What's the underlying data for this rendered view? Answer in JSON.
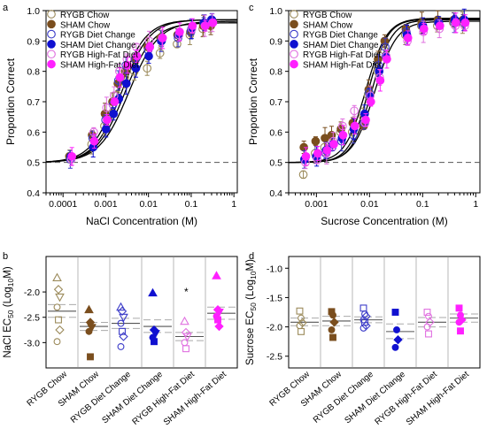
{
  "figure": {
    "panel_labels": [
      "a",
      "c",
      "b",
      "d"
    ],
    "colors": {
      "rygb_chow": "#9B8A5A",
      "sham_chow": "#7A4E1E",
      "rygb_diet_change": "#3B3BC8",
      "sham_diet_change": "#1010D0",
      "rygb_hfd": "#E070E0",
      "sham_hfd": "#FF20FF",
      "fit_line": "#000000",
      "dashed_line": "#555555"
    }
  },
  "chart_data": [
    {
      "panel": "a",
      "type": "scatter",
      "xscale": "log",
      "xlabel": "NaCl Concentration (M)",
      "ylabel": "Proportion Correct",
      "xlim": [
        4e-05,
        1.2
      ],
      "ylim": [
        0.4,
        1.0
      ],
      "x_ticks": [
        "0.0001",
        "0.001",
        "0.01",
        "0.1",
        "1"
      ],
      "y_ticks": [
        "0.4",
        "0.5",
        "0.6",
        "0.7",
        "0.8",
        "0.9",
        "1.0"
      ],
      "chance_level": 0.5,
      "legend_position": "top-left",
      "x": [
        0.00015,
        0.0005,
        0.001,
        0.0015,
        0.002,
        0.003,
        0.005,
        0.01,
        0.02,
        0.05,
        0.1,
        0.2,
        0.3
      ],
      "series": [
        {
          "name": "RYGB Chow",
          "marker": "circle",
          "filled": false,
          "values": [
            0.52,
            0.56,
            0.62,
            0.66,
            0.72,
            0.78,
            0.8,
            0.81,
            0.86,
            0.89,
            0.92,
            0.94,
            0.95
          ]
        },
        {
          "name": "SHAM Chow",
          "marker": "circle",
          "filled": true,
          "values": [
            0.52,
            0.59,
            0.66,
            0.7,
            0.76,
            0.8,
            0.84,
            0.88,
            0.91,
            0.92,
            0.93,
            0.95,
            0.95
          ]
        },
        {
          "name": "RYGB Diet Change",
          "marker": "circle",
          "filled": false,
          "values": [
            0.51,
            0.58,
            0.64,
            0.69,
            0.77,
            0.82,
            0.84,
            0.87,
            0.9,
            0.91,
            0.93,
            0.96,
            0.97
          ]
        },
        {
          "name": "SHAM Diet Change",
          "marker": "circle",
          "filled": true,
          "values": [
            0.52,
            0.55,
            0.61,
            0.66,
            0.71,
            0.76,
            0.81,
            0.85,
            0.9,
            0.92,
            0.94,
            0.96,
            0.97
          ]
        },
        {
          "name": "RYGB High-Fat Diet",
          "marker": "circle",
          "filled": false,
          "values": [
            0.51,
            0.6,
            0.68,
            0.72,
            0.8,
            0.84,
            0.88,
            0.9,
            0.91,
            0.92,
            0.94,
            0.95,
            0.96
          ]
        },
        {
          "name": "SHAM High-Fat Diet",
          "marker": "circle",
          "filled": true,
          "values": [
            0.52,
            0.57,
            0.64,
            0.7,
            0.78,
            0.82,
            0.85,
            0.88,
            0.91,
            0.93,
            0.95,
            0.95,
            0.96
          ]
        }
      ]
    },
    {
      "panel": "c",
      "type": "scatter",
      "xscale": "log",
      "xlabel": "Sucrose Concentration (M)",
      "ylabel": "Proportion Correct",
      "xlim": [
        0.0003,
        1.2
      ],
      "ylim": [
        0.4,
        1.0
      ],
      "x_ticks": [
        "0.001",
        "0.01",
        "0.1",
        "1"
      ],
      "y_ticks": [
        "0.4",
        "0.5",
        "0.6",
        "0.7",
        "0.8",
        "0.9",
        "1.0"
      ],
      "chance_level": 0.5,
      "legend_position": "top-left",
      "x": [
        0.0006,
        0.001,
        0.0015,
        0.002,
        0.003,
        0.005,
        0.008,
        0.01,
        0.015,
        0.02,
        0.05,
        0.1,
        0.2,
        0.4,
        0.6
      ],
      "series": [
        {
          "name": "RYGB Chow",
          "marker": "circle",
          "filled": false,
          "values": [
            0.46,
            0.53,
            0.55,
            0.57,
            0.6,
            0.6,
            0.65,
            0.72,
            0.8,
            0.87,
            0.92,
            0.95,
            0.95,
            0.96,
            0.96
          ]
        },
        {
          "name": "SHAM Chow",
          "marker": "circle",
          "filled": true,
          "values": [
            0.55,
            0.57,
            0.58,
            0.59,
            0.61,
            0.63,
            0.62,
            0.74,
            0.84,
            0.9,
            0.94,
            0.96,
            0.97,
            0.97,
            0.97
          ]
        },
        {
          "name": "RYGB Diet Change",
          "marker": "circle",
          "filled": false,
          "values": [
            0.51,
            0.52,
            0.53,
            0.55,
            0.57,
            0.59,
            0.63,
            0.73,
            0.82,
            0.88,
            0.93,
            0.95,
            0.96,
            0.96,
            0.96
          ]
        },
        {
          "name": "SHAM Diet Change",
          "marker": "circle",
          "filled": true,
          "values": [
            0.51,
            0.52,
            0.54,
            0.56,
            0.58,
            0.61,
            0.66,
            0.72,
            0.8,
            0.85,
            0.92,
            0.95,
            0.96,
            0.97,
            0.97
          ]
        },
        {
          "name": "RYGB High-Fat Diet",
          "marker": "circle",
          "filled": false,
          "values": [
            0.5,
            0.51,
            0.53,
            0.57,
            0.62,
            0.67,
            0.63,
            0.72,
            0.78,
            0.85,
            0.9,
            0.93,
            0.94,
            0.95,
            0.95
          ]
        },
        {
          "name": "SHAM High-Fat Diet",
          "marker": "circle",
          "filled": true,
          "values": [
            0.52,
            0.53,
            0.54,
            0.56,
            0.59,
            0.62,
            0.64,
            0.7,
            0.77,
            0.84,
            0.91,
            0.94,
            0.95,
            0.96,
            0.96
          ]
        }
      ]
    },
    {
      "panel": "b",
      "type": "scatter",
      "ylabel_parts": {
        "pre": "NaCl EC",
        "sub": "50",
        "mid": " (Log",
        "sub2": "10",
        "post": "M)"
      },
      "ylim": [
        -3.5,
        -1.3
      ],
      "y_ticks": [
        "-3.0",
        "-2.5",
        "-2.0"
      ],
      "categories": [
        "RYGB Chow",
        "SHAM Chow",
        "RYGB Diet Change",
        "SHAM Diet Change",
        "RYGB High-Fat Diet",
        "SHAM High-Fat Diet"
      ],
      "markers": [
        {
          "group": "RYGB Chow",
          "values": [
            -1.72,
            -1.95,
            -2.1,
            -2.3,
            -2.55,
            -2.75,
            -2.98
          ],
          "filled": false
        },
        {
          "group": "SHAM Chow",
          "values": [
            -2.35,
            -2.6,
            -2.7,
            -2.78,
            -3.28
          ],
          "filled": true
        },
        {
          "group": "RYGB Diet Change",
          "values": [
            -2.3,
            -2.38,
            -2.5,
            -2.62,
            -2.78,
            -2.88,
            -3.08
          ],
          "filled": false
        },
        {
          "group": "SHAM Diet Change",
          "values": [
            -2.02,
            -2.75,
            -2.82,
            -2.9,
            -2.98
          ],
          "filled": true
        },
        {
          "group": "RYGB High-Fat Diet",
          "values": [
            -2.58,
            -2.8,
            -2.88,
            -3.0,
            -3.12
          ],
          "filled": false
        },
        {
          "group": "SHAM High-Fat Diet",
          "values": [
            -1.68,
            -2.35,
            -2.4,
            -2.48,
            -2.55,
            -2.68
          ],
          "filled": true
        }
      ],
      "mean_lines": [
        {
          "group": "RYGB Chow",
          "mean": -2.38,
          "upper": -2.25,
          "lower": -2.5
        },
        {
          "group": "SHAM Chow",
          "mean": -2.68,
          "upper": -2.6,
          "lower": -2.76
        },
        {
          "group": "RYGB Diet Change",
          "mean": -2.62,
          "upper": -2.52,
          "lower": -2.72
        },
        {
          "group": "SHAM Diet Change",
          "mean": -2.68,
          "upper": -2.55,
          "lower": -2.8
        },
        {
          "group": "RYGB High-Fat Diet",
          "mean": -2.88,
          "upper": -2.8,
          "lower": -2.96
        },
        {
          "group": "SHAM High-Fat Diet",
          "mean": -2.42,
          "upper": -2.3,
          "lower": -2.54
        }
      ],
      "annotation": "*"
    },
    {
      "panel": "d",
      "type": "scatter",
      "ylabel_parts": {
        "pre": "Sucrose EC",
        "sub": "50",
        "mid": " (Log",
        "sub2": "10",
        "post": "M)"
      },
      "ylim": [
        -2.7,
        -0.8
      ],
      "y_ticks": [
        "-2.5",
        "-2.0",
        "-1.5",
        "-1.0"
      ],
      "categories": [
        "RYGB Chow",
        "SHAM Chow",
        "RYGB Diet Change",
        "SHAM Diet Change",
        "RYGB High-Fat Diet",
        "SHAM High-Fat Diet"
      ],
      "markers": [
        {
          "group": "RYGB Chow",
          "values": [
            -1.73,
            -1.85,
            -1.93,
            -1.98,
            -2.08
          ],
          "filled": false
        },
        {
          "group": "SHAM Chow",
          "values": [
            -1.74,
            -1.8,
            -1.92,
            -2.05,
            -2.18
          ],
          "filled": true
        },
        {
          "group": "RYGB Diet Change",
          "values": [
            -1.68,
            -1.78,
            -1.82,
            -1.88,
            -1.92,
            -1.98,
            -2.02
          ],
          "filled": false
        },
        {
          "group": "SHAM Diet Change",
          "values": [
            -1.75,
            -2.05,
            -2.22,
            -2.35
          ],
          "filled": true
        },
        {
          "group": "RYGB High-Fat Diet",
          "values": [
            -1.75,
            -1.82,
            -1.92,
            -2.0,
            -2.12
          ],
          "filled": false
        },
        {
          "group": "SHAM High-Fat Diet",
          "values": [
            -1.68,
            -1.8,
            -1.88,
            -1.92,
            -2.07
          ],
          "filled": true
        }
      ],
      "mean_lines": [
        {
          "group": "RYGB Chow",
          "mean": -1.92,
          "upper": -1.85,
          "lower": -1.98
        },
        {
          "group": "SHAM Chow",
          "mean": -1.9,
          "upper": -1.82,
          "lower": -1.98
        },
        {
          "group": "RYGB Diet Change",
          "mean": -1.88,
          "upper": -1.83,
          "lower": -1.93
        },
        {
          "group": "SHAM Diet Change",
          "mean": -2.08,
          "upper": -1.95,
          "lower": -2.2
        },
        {
          "group": "RYGB High-Fat Diet",
          "mean": -1.92,
          "upper": -1.84,
          "lower": -2.0
        },
        {
          "group": "SHAM High-Fat Diet",
          "mean": -1.85,
          "upper": -1.78,
          "lower": -1.92
        }
      ]
    }
  ]
}
